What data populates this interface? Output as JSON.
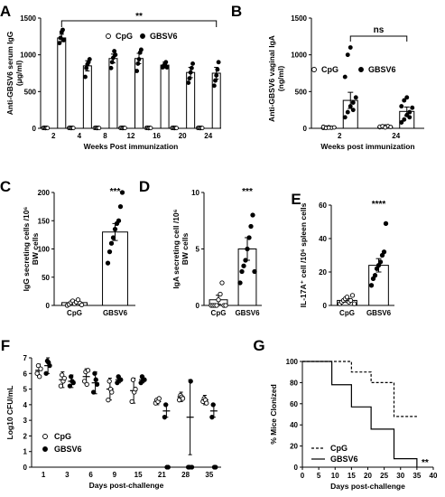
{
  "panels": [
    {
      "id": "A",
      "type": "bar",
      "categories": [
        "2",
        "4",
        "8",
        "12",
        "16",
        "20",
        "24"
      ],
      "groups": [
        "CpG",
        "GBSV6"
      ],
      "xlabel": "Weeks Post immunization",
      "ylabel": "Anti-GBSV6 serum IgG (μg/ml)",
      "ylim": [
        0,
        1500
      ],
      "yticks": [
        0,
        500,
        1000,
        1500
      ],
      "series": [
        {
          "name": "CpG",
          "values": [
            0,
            0,
            0,
            0,
            0,
            0,
            0
          ],
          "err": [
            5,
            5,
            5,
            5,
            5,
            5,
            5
          ],
          "points": [
            [
              5,
              8,
              3,
              6,
              4
            ],
            [
              5,
              8,
              3,
              6,
              4
            ],
            [
              5,
              8,
              3,
              6,
              4
            ],
            [
              5,
              8,
              3,
              6,
              4
            ],
            [
              5,
              8,
              3,
              6,
              4
            ],
            [
              5,
              8,
              3,
              6,
              4
            ],
            [
              5,
              8,
              3,
              6,
              4
            ]
          ]
        },
        {
          "name": "GBSV6",
          "values": [
            1230,
            850,
            950,
            950,
            860,
            760,
            750
          ],
          "err": [
            50,
            70,
            60,
            70,
            40,
            70,
            80
          ],
          "points": [
            [
              1160,
              1230,
              1310,
              1340,
              1200
            ],
            [
              700,
              820,
              870,
              900,
              940
            ],
            [
              820,
              900,
              960,
              1050,
              1000
            ],
            [
              780,
              880,
              940,
              1030,
              1070
            ],
            [
              830,
              850,
              870,
              900,
              830
            ],
            [
              620,
              680,
              760,
              820,
              880
            ],
            [
              580,
              650,
              720,
              800,
              900
            ]
          ]
        }
      ],
      "annotations": [
        {
          "text": "**",
          "from": "2",
          "to": "24"
        }
      ]
    },
    {
      "id": "B",
      "type": "bar",
      "categories": [
        "2",
        "24"
      ],
      "groups": [
        "CpG",
        "GBSV6"
      ],
      "xlabel": "Weeks post immunization",
      "ylabel": "Anti-GBSV6 vaginal IgA (ng/ml)",
      "ylim": [
        0,
        1500
      ],
      "yticks": [
        0,
        500,
        1000,
        1500
      ],
      "series": [
        {
          "name": "CpG",
          "values": [
            10,
            20
          ],
          "err": [
            4,
            6
          ],
          "points": [
            [
              5,
              10,
              15,
              8,
              12,
              20,
              6,
              9
            ],
            [
              15,
              20,
              25,
              30,
              18,
              22,
              28,
              12
            ]
          ]
        },
        {
          "name": "GBSV6",
          "values": [
            380,
            230
          ],
          "err": [
            110,
            60
          ],
          "points": [
            [
              150,
              220,
              300,
              350,
              420,
              700,
              1000,
              1100,
              250
            ],
            [
              80,
              120,
              180,
              220,
              280,
              300,
              380,
              420,
              150
            ]
          ]
        }
      ],
      "annotations": [
        {
          "text": "ns",
          "from": "2",
          "to": "24"
        }
      ]
    },
    {
      "id": "C",
      "type": "bar",
      "categories": [
        "CpG",
        "GBSV6"
      ],
      "ylabel": "IgG secreting cells /10^6 BW cells",
      "ylim": [
        0,
        200
      ],
      "yticks": [
        0,
        50,
        100,
        150,
        200
      ],
      "values": [
        5,
        130
      ],
      "err": [
        2,
        15
      ],
      "points": [
        [
          0,
          2,
          5,
          8,
          3,
          6,
          10,
          4,
          1
        ],
        [
          75,
          95,
          110,
          120,
          135,
          145,
          150,
          175,
          200
        ]
      ],
      "annotations": [
        {
          "text": "***",
          "at": "GBSV6"
        }
      ]
    },
    {
      "id": "D",
      "type": "bar",
      "categories": [
        "CpG",
        "GBSV6"
      ],
      "ylabel": "IgA secreting cell /10^6 BW cells",
      "ylim": [
        0,
        10
      ],
      "yticks": [
        0,
        5,
        10
      ],
      "values": [
        0.5,
        5
      ],
      "err": [
        0.4,
        1
      ],
      "points": [
        [
          0,
          0,
          0,
          0,
          0.5,
          1,
          2,
          0,
          0
        ],
        [
          2,
          3,
          3.5,
          4,
          5,
          6,
          7,
          8,
          3
        ]
      ],
      "annotations": [
        {
          "text": "***",
          "at": "GBSV6"
        }
      ]
    },
    {
      "id": "E",
      "type": "bar",
      "categories": [
        "CpG",
        "GBSV6"
      ],
      "ylabel": "IL-17A+ cell /10^6 spleen cells",
      "ylim": [
        0,
        60
      ],
      "yticks": [
        0,
        20,
        40,
        60
      ],
      "values": [
        3,
        24
      ],
      "err": [
        1,
        4
      ],
      "points": [
        [
          1,
          2,
          3,
          4,
          5,
          2,
          3,
          6,
          1
        ],
        [
          12,
          16,
          18,
          22,
          24,
          26,
          30,
          32,
          49
        ]
      ],
      "annotations": [
        {
          "text": "****",
          "at": "GBSV6"
        }
      ]
    },
    {
      "id": "F",
      "type": "scatter",
      "categories": [
        "1",
        "3",
        "6",
        "9",
        "15",
        "21",
        "28",
        "35"
      ],
      "xlabel": "Days post-challenge",
      "ylabel": "Log10 CFU/mL",
      "ylim": [
        0,
        7
      ],
      "yticks": [
        0,
        1,
        2,
        3,
        4,
        5,
        6,
        7
      ],
      "series": [
        {
          "name": "CpG",
          "means": [
            6.2,
            5.6,
            5.8,
            5.0,
            4.9,
            4.2,
            4.5,
            4.3
          ],
          "err": [
            0.4,
            0.5,
            0.5,
            0.7,
            0.8,
            0.2,
            0.3,
            0.3
          ],
          "points": [
            [
              6.0,
              6.5,
              5.8,
              6.3
            ],
            [
              5.2,
              5.9,
              5.5,
              5.7
            ],
            [
              5.5,
              6.1,
              5.3,
              6.2
            ],
            [
              4.3,
              5.5,
              5.0,
              4.8
            ],
            [
              4.2,
              5.6,
              4.8,
              5.0
            ],
            [
              4.1,
              4.3,
              4.2,
              4.4
            ],
            [
              4.3,
              4.6,
              4.5,
              4.4
            ],
            [
              4.2,
              4.4,
              4.3,
              4.1
            ]
          ]
        },
        {
          "name": "GBSV6",
          "means": [
            6.5,
            5.5,
            5.4,
            5.6,
            5.6,
            3.6,
            3.2,
            3.6
          ],
          "err": [
            0.5,
            0.4,
            0.7,
            0.2,
            0.2,
            0.4,
            2.4,
            0.4
          ],
          "points": [
            [
              6.0,
              6.8,
              6.7,
              6.5
            ],
            [
              5.2,
              5.8,
              5.5,
              5.4
            ],
            [
              4.8,
              6.0,
              5.6,
              5.3
            ],
            [
              5.4,
              5.8,
              5.6,
              5.6
            ],
            [
              5.4,
              5.8,
              5.6,
              5.6
            ],
            [
              3.2,
              4.0,
              0.0,
              0.0
            ],
            [
              0.0,
              0.0,
              5.5,
              0.0
            ],
            [
              3.2,
              4.0,
              0.0,
              0.0
            ]
          ]
        }
      ]
    },
    {
      "id": "G",
      "type": "line",
      "xlabel": "Days post-challenge",
      "ylabel": "% Mice Clonized",
      "xlim": [
        0,
        40
      ],
      "xticks": [
        0,
        5,
        10,
        15,
        20,
        25,
        30,
        35,
        40
      ],
      "ylim": [
        0,
        100
      ],
      "yticks": [
        0,
        20,
        40,
        60,
        80,
        100
      ],
      "series": [
        {
          "name": "CpG",
          "style": "dashed",
          "steps": [
            [
              0,
              100
            ],
            [
              15,
              100
            ],
            [
              15,
              90
            ],
            [
              21,
              90
            ],
            [
              21,
              80
            ],
            [
              28,
              80
            ],
            [
              28,
              48
            ],
            [
              35,
              48
            ]
          ]
        },
        {
          "name": "GBSV6",
          "style": "solid",
          "steps": [
            [
              0,
              100
            ],
            [
              9,
              100
            ],
            [
              9,
              78
            ],
            [
              15,
              78
            ],
            [
              15,
              57
            ],
            [
              21,
              57
            ],
            [
              21,
              36
            ],
            [
              28,
              36
            ],
            [
              28,
              8
            ],
            [
              35,
              8
            ],
            [
              35,
              0
            ]
          ]
        }
      ],
      "annotations": [
        {
          "text": "**"
        }
      ]
    }
  ]
}
